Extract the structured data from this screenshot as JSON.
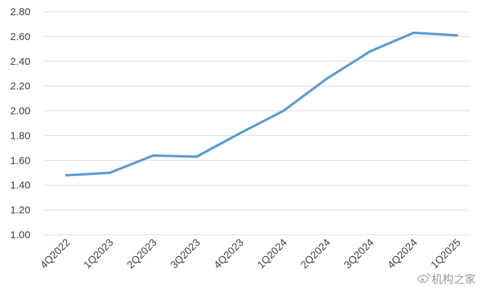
{
  "chart_data": {
    "type": "line",
    "categories": [
      "4Q2022",
      "1Q2023",
      "2Q2023",
      "3Q2023",
      "4Q2023",
      "1Q2024",
      "2Q2024",
      "3Q2024",
      "4Q2024",
      "1Q2025"
    ],
    "series": [
      {
        "values": [
          1.48,
          1.5,
          1.64,
          1.63,
          1.82,
          2.0,
          2.26,
          2.48,
          2.63,
          2.61
        ]
      }
    ],
    "yticks": [
      "1.00",
      "1.20",
      "1.40",
      "1.60",
      "1.80",
      "2.00",
      "2.20",
      "2.40",
      "2.60",
      "2.80"
    ],
    "ylim": [
      1.0,
      2.8
    ],
    "grid": true,
    "legend": "none",
    "title": "",
    "xlabel": "",
    "ylabel": ""
  },
  "colors": {
    "series": "#5b9bd5",
    "grid": "#d9d9d9",
    "text": "#404040"
  },
  "watermark": {
    "text": "机构之家",
    "icon": "weibo-icon"
  }
}
